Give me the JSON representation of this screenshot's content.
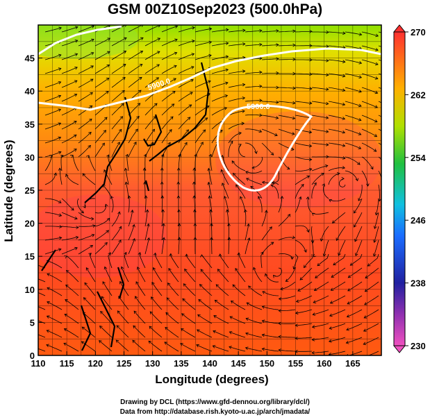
{
  "title": "GSM 00Z10Sep2023 (500.0hPa)",
  "xaxis": {
    "label": "Longitude (degrees)",
    "ticks": [
      "110",
      "115",
      "120",
      "125",
      "130",
      "135",
      "140",
      "145",
      "150",
      "155",
      "160",
      "165"
    ],
    "range": [
      110,
      170
    ]
  },
  "yaxis": {
    "label": "Latitude  (degrees)",
    "ticks": [
      "0",
      "5",
      "10",
      "15",
      "20",
      "25",
      "30",
      "35",
      "40",
      "45"
    ],
    "range": [
      0,
      50
    ]
  },
  "colorbar": {
    "ticks": [
      "230",
      "238",
      "246",
      "254",
      "262",
      "270"
    ],
    "range": [
      230,
      270
    ],
    "colors": [
      "#e040c0",
      "#2020a0",
      "#1a8cff",
      "#20c040",
      "#b0e000",
      "#ffa000",
      "#ff3030"
    ]
  },
  "contours": {
    "label": "5900.0",
    "color": "#ffffff"
  },
  "credits": {
    "line1": "Drawing by DCL (https://www.gfd-dennou.org/library/dcl/)",
    "line2": "Data from http://database.rish.kyoto-u.ac.jp/arch/jmadata/"
  }
}
